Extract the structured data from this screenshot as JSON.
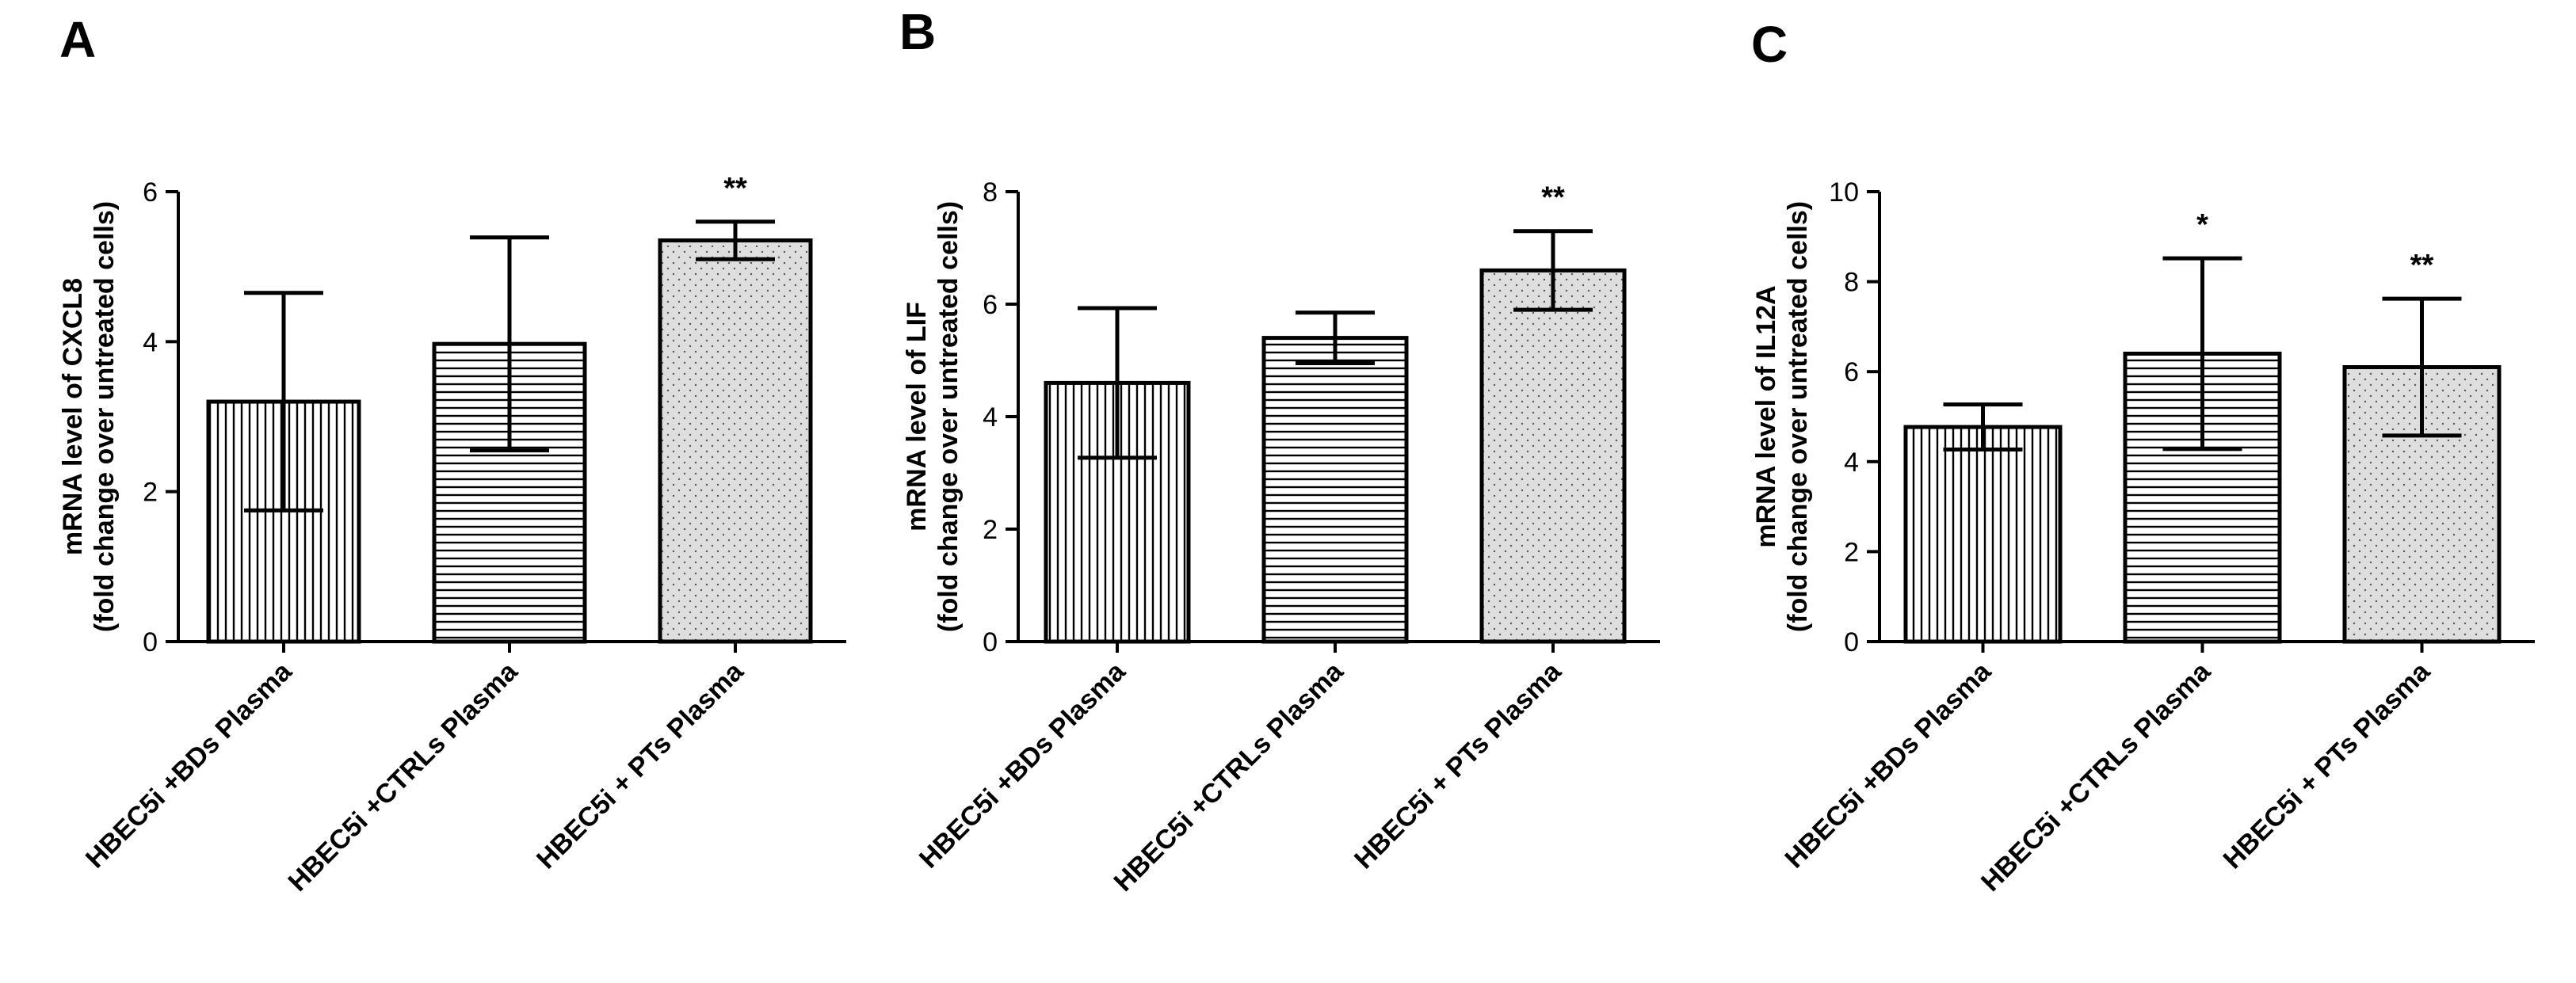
{
  "chart_data": [
    {
      "type": "bar",
      "panel": "A",
      "ylabel_line1": "mRNA level of CXCL8",
      "ylabel_line2": "(fold change over untreated cells)",
      "ylim": [
        0,
        6
      ],
      "yticks": [
        0,
        2,
        4,
        6
      ],
      "categories": [
        "HBEC5i +BDs Plasma",
        "HBEC5i +CTRLs Plasma",
        "HBEC5i + PTs Plasma"
      ],
      "values": [
        3.2,
        3.97,
        5.35
      ],
      "errors": [
        1.45,
        1.42,
        0.25
      ],
      "significance": [
        "",
        "",
        "**"
      ],
      "patterns": [
        "vertical",
        "horizontal",
        "dots"
      ]
    },
    {
      "type": "bar",
      "panel": "B",
      "ylabel_line1": "mRNA level of LIF",
      "ylabel_line2": "(fold change over untreated cells)",
      "ylim": [
        0,
        8
      ],
      "yticks": [
        0,
        2,
        4,
        6,
        8
      ],
      "categories": [
        "HBEC5i +BDs Plasma",
        "HBEC5i +CTRLs Plasma",
        "HBEC5i + PTs Plasma"
      ],
      "values": [
        4.6,
        5.4,
        6.6
      ],
      "errors": [
        1.33,
        0.45,
        0.7
      ],
      "significance": [
        "",
        "",
        "**"
      ],
      "patterns": [
        "vertical",
        "horizontal",
        "dots"
      ]
    },
    {
      "type": "bar",
      "panel": "C",
      "ylabel_line1": "mRNA level of IL12A",
      "ylabel_line2": "(fold change over untreated cells)",
      "ylim": [
        0,
        10
      ],
      "yticks": [
        0,
        2,
        4,
        6,
        8,
        10
      ],
      "categories": [
        "HBEC5i +BDs Plasma",
        "HBEC5i +CTRLs Plasma",
        "HBEC5i + PTs Plasma"
      ],
      "values": [
        4.77,
        6.4,
        6.1
      ],
      "errors": [
        0.5,
        2.12,
        1.52
      ],
      "significance": [
        "",
        "*",
        "**"
      ],
      "patterns": [
        "vertical",
        "horizontal",
        "dots"
      ]
    }
  ]
}
